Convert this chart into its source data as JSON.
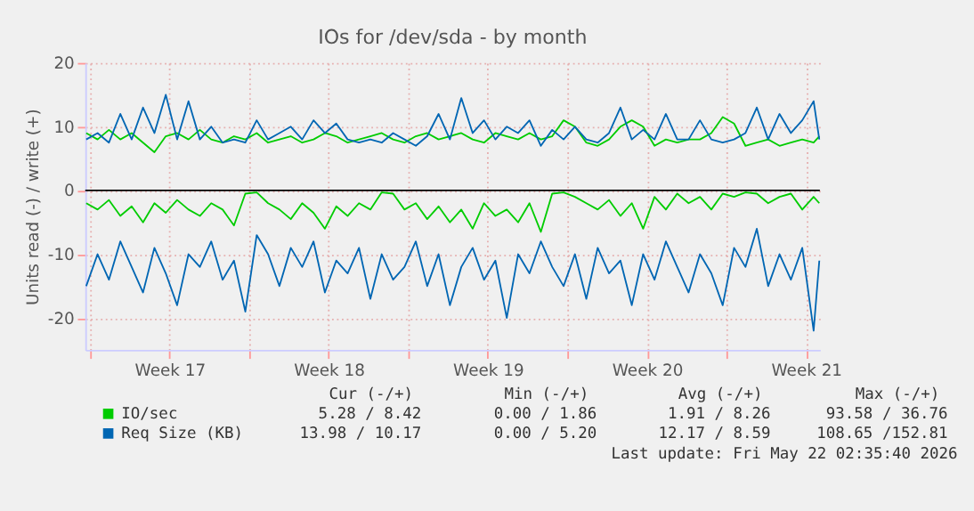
{
  "chart_data": {
    "type": "line",
    "title": "IOs for /dev/sda - by month",
    "ylabel": "Units read (-) / write (+)",
    "x": [
      "2026-04-19T20:00",
      "2026-04-20T08:00",
      "2026-04-20T20:00",
      "2026-04-21T08:00",
      "2026-04-21T20:00",
      "2026-04-22T08:00",
      "2026-04-22T20:00",
      "2026-04-23T08:00",
      "2026-04-23T20:00",
      "2026-04-24T08:00",
      "2026-04-24T20:00",
      "2026-04-25T08:00",
      "2026-04-25T20:00",
      "2026-04-26T08:00",
      "2026-04-26T20:00",
      "2026-04-27T08:00",
      "2026-04-27T20:00",
      "2026-04-28T08:00",
      "2026-04-28T20:00",
      "2026-04-29T08:00",
      "2026-04-29T20:00",
      "2026-04-30T08:00",
      "2026-04-30T20:00",
      "2026-05-01T08:00",
      "2026-05-01T20:00",
      "2026-05-02T08:00",
      "2026-05-02T20:00",
      "2026-05-03T08:00",
      "2026-05-03T20:00",
      "2026-05-04T08:00",
      "2026-05-04T20:00",
      "2026-05-05T08:00",
      "2026-05-05T20:00",
      "2026-05-06T08:00",
      "2026-05-06T20:00",
      "2026-05-07T08:00",
      "2026-05-07T20:00",
      "2026-05-08T08:00",
      "2026-05-08T20:00",
      "2026-05-09T08:00",
      "2026-05-09T20:00",
      "2026-05-10T08:00",
      "2026-05-10T20:00",
      "2026-05-11T08:00",
      "2026-05-11T20:00",
      "2026-05-12T08:00",
      "2026-05-12T20:00",
      "2026-05-13T08:00",
      "2026-05-13T20:00",
      "2026-05-14T08:00",
      "2026-05-14T20:00",
      "2026-05-15T08:00",
      "2026-05-15T20:00",
      "2026-05-16T08:00",
      "2026-05-16T20:00",
      "2026-05-17T08:00",
      "2026-05-17T20:00",
      "2026-05-18T08:00",
      "2026-05-18T20:00",
      "2026-05-19T08:00",
      "2026-05-19T20:00",
      "2026-05-20T08:00",
      "2026-05-20T20:00",
      "2026-05-21T08:00",
      "2026-05-21T20:00",
      "2026-05-22T02:00"
    ],
    "series": [
      {
        "name": "IO/sec",
        "color": "#00cc00",
        "values": [
          9,
          8,
          9.5,
          8,
          9,
          7.5,
          6,
          8.5,
          9,
          8,
          9.5,
          8,
          7.5,
          8.5,
          8,
          9,
          7.5,
          8,
          8.5,
          7.5,
          8,
          9,
          8.5,
          7.5,
          8,
          8.5,
          9,
          8,
          7.5,
          8.5,
          9,
          8,
          8.5,
          9,
          8,
          7.5,
          9,
          8.5,
          8,
          9,
          8,
          8.5,
          11,
          10,
          7.5,
          7,
          8,
          10,
          11,
          10,
          7,
          8,
          7.5,
          8,
          8,
          9,
          11.5,
          10.5,
          7,
          7.5,
          8,
          7,
          7.5,
          8,
          7.5,
          8.5
        ]
      },
      {
        "name": "Req Size (KB)",
        "color": "#0066b3",
        "values": [
          8,
          9,
          7.5,
          12,
          8,
          13,
          9,
          15,
          8,
          14,
          8,
          10,
          7.5,
          8,
          7.5,
          11,
          8,
          9,
          10,
          8,
          11,
          9,
          10.5,
          8,
          7.5,
          8,
          7.5,
          9,
          8,
          7,
          8.5,
          12,
          8,
          14.5,
          9,
          11,
          8,
          10,
          9,
          11,
          7,
          9.5,
          8,
          10,
          8,
          7.5,
          9,
          13,
          8,
          9.5,
          8,
          12,
          8,
          8,
          11,
          8,
          7.5,
          8,
          9,
          13,
          8,
          12,
          9,
          11,
          14,
          8
        ]
      },
      {
        "color": "#00cc00",
        "values": [
          -2,
          -3,
          -1.5,
          -4,
          -2.5,
          -5,
          -2,
          -3.5,
          -1.5,
          -3,
          -4,
          -2,
          -3,
          -5.5,
          -0.5,
          -0.3,
          -2,
          -3,
          -4.5,
          -2,
          -3.5,
          -6,
          -2.5,
          -4,
          -2,
          -3,
          -0.3,
          -0.5,
          -3,
          -2,
          -4.5,
          -2.5,
          -5,
          -3,
          -6,
          -2,
          -4,
          -3,
          -5,
          -2,
          -6.5,
          -0.5,
          -0.3,
          -1,
          -2,
          -3,
          -1.5,
          -4,
          -2,
          -6,
          -1,
          -3,
          -0.5,
          -2,
          -1,
          -3,
          -0.5,
          -1,
          -0.3,
          -0.5,
          -2,
          -1,
          -0.5,
          -3,
          -1,
          -2
        ]
      },
      {
        "color": "#0066b3",
        "values": [
          -15,
          -10,
          -14,
          -8,
          -12,
          -16,
          -9,
          -13,
          -18,
          -10,
          -12,
          -8,
          -14,
          -11,
          -19,
          -7,
          -10,
          -15,
          -9,
          -12,
          -8,
          -16,
          -11,
          -13,
          -9,
          -17,
          -10,
          -14,
          -12,
          -8,
          -15,
          -10,
          -18,
          -12,
          -9,
          -14,
          -11,
          -20,
          -10,
          -13,
          -8,
          -12,
          -15,
          -10,
          -17,
          -9,
          -13,
          -11,
          -18,
          -10,
          -14,
          -8,
          -12,
          -16,
          -10,
          -13,
          -18,
          -9,
          -12,
          -6,
          -15,
          -10,
          -14,
          -9,
          -22,
          -11
        ]
      }
    ],
    "xlim": [
      "2026-04-19T19:00",
      "2026-05-22T02:35"
    ],
    "xticks": [
      {
        "value": "2026-04-20",
        "label": null
      },
      {
        "value": "2026-04-23T12:00",
        "label": "Week 17"
      },
      {
        "value": "2026-04-27",
        "label": null
      },
      {
        "value": "2026-04-30T12:00",
        "label": "Week 18"
      },
      {
        "value": "2026-05-04",
        "label": null
      },
      {
        "value": "2026-05-07T12:00",
        "label": "Week 19"
      },
      {
        "value": "2026-05-11",
        "label": null
      },
      {
        "value": "2026-05-14T12:00",
        "label": "Week 20"
      },
      {
        "value": "2026-05-18",
        "label": null
      },
      {
        "value": "2026-05-21T12:00",
        "label": "Week 21"
      }
    ],
    "ylim": [
      -25,
      20
    ],
    "yticks": [
      -20,
      -10,
      0,
      10,
      20
    ],
    "grid": true,
    "legend": "bottom left",
    "marker": "none",
    "line_style": "solid",
    "ref_lines": [
      {
        "axis": "y",
        "value": 0,
        "color": "#000000"
      }
    ],
    "annotations": [
      "Cur (-/+)",
      "Min (-/+)",
      "Avg (-/+)",
      "Max (-/+)",
      "5.28 /  8.42",
      "0.00 /  1.86",
      "1.91 /  8.26",
      "93.58 / 36.76",
      "13.98 / 10.17",
      "0.00 /  5.20",
      "12.17 /  8.59",
      "108.65 /152.81",
      "Last update: Fri May 22 02:35:40 2026"
    ]
  }
}
